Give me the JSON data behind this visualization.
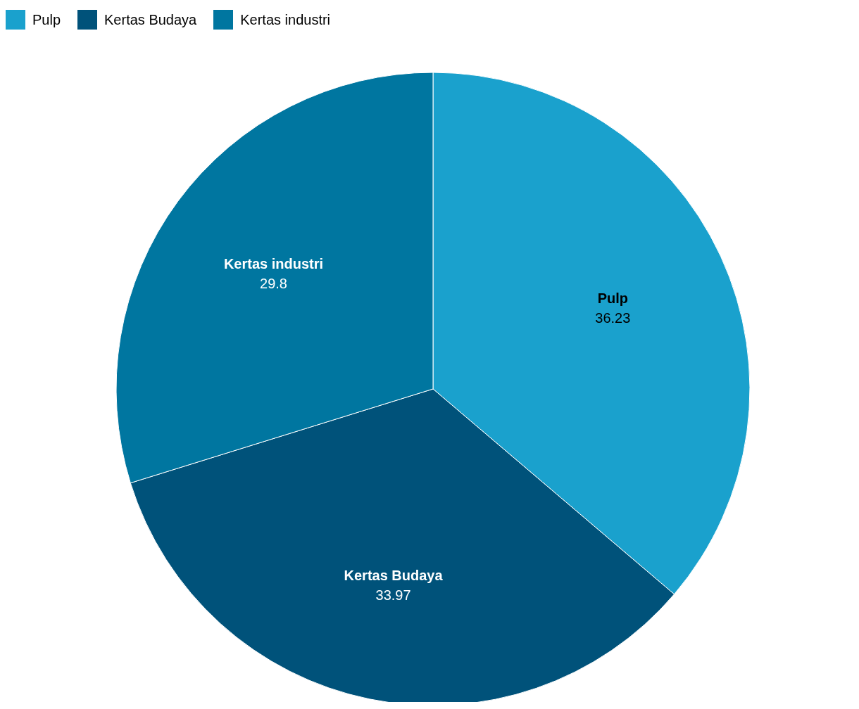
{
  "chart_data": {
    "type": "pie",
    "categories": [
      "Pulp",
      "Kertas Budaya",
      "Kertas industri"
    ],
    "values": [
      36.23,
      33.97,
      29.8
    ],
    "colors": [
      "#1aa1cd",
      "#00527a",
      "#0076a0"
    ],
    "data_labels": true,
    "legend": "top left"
  }
}
